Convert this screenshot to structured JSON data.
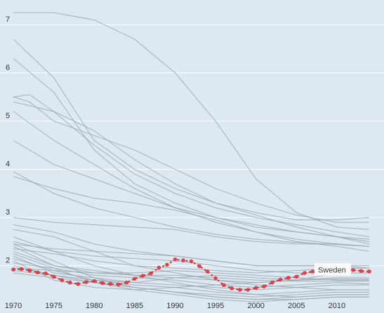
{
  "chart_data": {
    "type": "line",
    "title": "",
    "xlabel": "",
    "ylabel": "",
    "xlim": [
      1970,
      2015
    ],
    "ylim": [
      1.2,
      7.3
    ],
    "x_ticks": [
      1970,
      1975,
      1980,
      1985,
      1990,
      1995,
      2000,
      2005,
      2010
    ],
    "y_ticks": [
      2,
      3,
      4,
      5,
      6,
      7
    ],
    "grid": "horizontal",
    "legend": "none",
    "colors": {
      "background": "#dde8f0",
      "background_line": "#9aa6ae",
      "highlight_line": "#c8323c",
      "highlight_dot": "#d9434c",
      "grid": "#ffffff"
    },
    "highlight": {
      "name": "Sweden",
      "x": [
        1970,
        1971,
        1972,
        1973,
        1974,
        1975,
        1976,
        1977,
        1978,
        1979,
        1980,
        1981,
        1982,
        1983,
        1984,
        1985,
        1986,
        1987,
        1988,
        1989,
        1990,
        1991,
        1992,
        1993,
        1994,
        1995,
        1996,
        1997,
        1998,
        1999,
        2000,
        2001,
        2002,
        2003,
        2004,
        2005,
        2006,
        2007,
        2008,
        2009,
        2010,
        2011,
        2012,
        2013,
        2014
      ],
      "y": [
        1.92,
        1.93,
        1.9,
        1.86,
        1.84,
        1.77,
        1.7,
        1.65,
        1.62,
        1.66,
        1.68,
        1.64,
        1.62,
        1.61,
        1.65,
        1.73,
        1.79,
        1.84,
        1.96,
        2.02,
        2.13,
        2.11,
        2.09,
        1.99,
        1.88,
        1.74,
        1.6,
        1.53,
        1.5,
        1.5,
        1.54,
        1.57,
        1.65,
        1.71,
        1.75,
        1.77,
        1.85,
        1.88,
        1.91,
        1.94,
        1.98,
        1.9,
        1.91,
        1.89,
        1.88
      ]
    },
    "series": [
      {
        "x": [
          1970,
          1975,
          1980,
          1985,
          1990,
          1995,
          2000,
          2005,
          2010,
          2014
        ],
        "y": [
          7.25,
          7.25,
          7.1,
          6.7,
          6.0,
          5.0,
          3.8,
          3.1,
          2.8,
          2.75
        ]
      },
      {
        "x": [
          1970,
          1975,
          1980,
          1985,
          1990,
          1995,
          2000,
          2005,
          2010,
          2014
        ],
        "y": [
          6.7,
          5.9,
          4.6,
          4.0,
          3.6,
          3.3,
          3.05,
          2.8,
          2.6,
          2.45
        ]
      },
      {
        "x": [
          1970,
          1975,
          1980,
          1985,
          1990,
          1995,
          2000,
          2005,
          2010,
          2014
        ],
        "y": [
          6.3,
          5.6,
          4.4,
          3.7,
          3.3,
          3.0,
          2.8,
          2.7,
          2.6,
          2.55
        ]
      },
      {
        "x": [
          1970,
          1972,
          1975,
          1980,
          1985,
          1990,
          1995,
          2000,
          2005,
          2010,
          2014
        ],
        "y": [
          5.5,
          5.4,
          5.0,
          4.7,
          4.4,
          4.0,
          3.6,
          3.3,
          3.05,
          2.9,
          2.9
        ]
      },
      {
        "x": [
          1970,
          1972,
          1975,
          1980,
          1985,
          1990,
          1995,
          2000,
          2005,
          2010,
          2014
        ],
        "y": [
          5.5,
          5.55,
          5.2,
          4.8,
          4.2,
          3.7,
          3.3,
          3.1,
          2.95,
          2.95,
          3.0
        ]
      },
      {
        "x": [
          1970,
          1975,
          1980,
          1985,
          1990,
          1995,
          2000,
          2005,
          2010,
          2014
        ],
        "y": [
          5.4,
          5.2,
          4.5,
          3.9,
          3.5,
          3.2,
          3.0,
          2.85,
          2.7,
          2.6
        ]
      },
      {
        "x": [
          1970,
          1975,
          1980,
          1985,
          1990,
          1995,
          2000,
          2005,
          2010,
          2014
        ],
        "y": [
          5.2,
          4.6,
          4.1,
          3.6,
          3.2,
          2.9,
          2.7,
          2.55,
          2.45,
          2.4
        ]
      },
      {
        "x": [
          1970,
          1975,
          1980,
          1985,
          1990,
          1995,
          2000,
          2005,
          2010,
          2014
        ],
        "y": [
          4.6,
          4.1,
          3.8,
          3.5,
          3.2,
          3.0,
          2.85,
          2.7,
          2.6,
          2.5
        ]
      },
      {
        "x": [
          1970,
          1975,
          1980,
          1985,
          1990,
          1995,
          2000,
          2005,
          2010,
          2014
        ],
        "y": [
          3.95,
          3.5,
          3.2,
          3.0,
          2.8,
          2.65,
          2.55,
          2.48,
          2.44,
          2.4
        ]
      },
      {
        "x": [
          1970,
          1975,
          1980,
          1985,
          1990,
          1995,
          2000,
          2005,
          2010,
          2014
        ],
        "y": [
          3.85,
          3.6,
          3.4,
          3.3,
          3.15,
          2.95,
          2.7,
          2.5,
          2.4,
          2.3
        ]
      },
      {
        "x": [
          1970,
          1975,
          1980,
          1985,
          1990,
          1995,
          2000,
          2005,
          2010,
          2014
        ],
        "y": [
          3.0,
          2.9,
          2.85,
          2.8,
          2.75,
          2.6,
          2.5,
          2.45,
          2.45,
          2.4
        ]
      },
      {
        "x": [
          1970,
          1975,
          1980,
          1985,
          1990,
          1995,
          2000,
          2005,
          2010,
          2014
        ],
        "y": [
          2.85,
          2.7,
          2.45,
          2.3,
          2.2,
          2.1,
          2.0,
          2.0,
          2.0,
          1.95
        ]
      },
      {
        "x": [
          1970,
          1975,
          1980,
          1985,
          1990,
          1995,
          2000,
          2005,
          2010,
          2014
        ],
        "y": [
          2.75,
          2.6,
          2.3,
          2.0,
          1.85,
          1.7,
          1.6,
          1.55,
          1.5,
          1.5
        ]
      },
      {
        "x": [
          1970,
          1975,
          1980,
          1985,
          1990,
          1995,
          2000,
          2005,
          2010,
          2014
        ],
        "y": [
          2.6,
          2.3,
          2.0,
          1.8,
          1.65,
          1.5,
          1.4,
          1.35,
          1.4,
          1.4
        ]
      },
      {
        "x": [
          1970,
          1975,
          1980,
          1985,
          1990,
          1995,
          2000,
          2005,
          2010,
          2014
        ],
        "y": [
          2.45,
          2.1,
          1.75,
          1.55,
          1.45,
          1.35,
          1.3,
          1.35,
          1.4,
          1.4
        ]
      },
      {
        "x": [
          1970,
          1975,
          1980,
          1985,
          1990,
          1995,
          2000,
          2005,
          2010,
          2014
        ],
        "y": [
          2.4,
          2.0,
          1.85,
          1.85,
          1.9,
          1.85,
          1.8,
          1.75,
          1.7,
          1.7
        ]
      },
      {
        "x": [
          1970,
          1975,
          1980,
          1985,
          1990,
          1995,
          2000,
          2005,
          2010,
          2014
        ],
        "y": [
          2.3,
          2.0,
          1.9,
          1.8,
          1.75,
          1.7,
          1.65,
          1.7,
          1.75,
          1.75
        ]
      },
      {
        "x": [
          1970,
          1975,
          1980,
          1985,
          1990,
          1995,
          2000,
          2005,
          2010,
          2014
        ],
        "y": [
          2.2,
          1.85,
          1.75,
          1.65,
          1.6,
          1.55,
          1.5,
          1.55,
          1.6,
          1.6
        ]
      },
      {
        "x": [
          1970,
          1975,
          1980,
          1985,
          1990,
          1995,
          2000,
          2005,
          2010,
          2014
        ],
        "y": [
          2.1,
          1.7,
          1.55,
          1.5,
          1.55,
          1.6,
          1.65,
          1.7,
          1.85,
          1.85
        ]
      },
      {
        "x": [
          1970,
          1975,
          1980,
          1985,
          1990,
          1995,
          2000,
          2005,
          2010,
          2014
        ],
        "y": [
          2.0,
          1.8,
          1.65,
          1.55,
          1.45,
          1.4,
          1.35,
          1.4,
          1.45,
          1.45
        ]
      },
      {
        "x": [
          1970,
          1975,
          1980,
          1985,
          1990,
          1995,
          2000,
          2005,
          2010,
          2014
        ],
        "y": [
          1.9,
          1.8,
          1.7,
          1.6,
          1.55,
          1.45,
          1.4,
          1.45,
          1.5,
          1.5
        ]
      },
      {
        "x": [
          1970,
          1975,
          1980,
          1985,
          1990,
          1995,
          2000,
          2005,
          2010,
          2014
        ],
        "y": [
          2.35,
          2.25,
          2.1,
          2.0,
          1.95,
          1.9,
          1.85,
          1.9,
          1.95,
          1.95
        ]
      },
      {
        "x": [
          1970,
          1975,
          1980,
          1985,
          1990,
          1995,
          2000,
          2005,
          2010,
          2014
        ],
        "y": [
          2.5,
          2.3,
          2.2,
          2.15,
          2.1,
          2.0,
          1.9,
          1.85,
          1.85,
          1.85
        ]
      },
      {
        "x": [
          1970,
          1975,
          1980,
          1985,
          1990,
          1995,
          2000,
          2005,
          2010,
          2014
        ],
        "y": [
          2.05,
          1.95,
          1.8,
          1.75,
          1.7,
          1.6,
          1.55,
          1.6,
          1.65,
          1.62
        ]
      },
      {
        "x": [
          1970,
          1975,
          1980,
          1985,
          1990,
          1995,
          2000,
          2005,
          2010,
          2014
        ],
        "y": [
          1.85,
          1.75,
          1.65,
          1.55,
          1.45,
          1.35,
          1.3,
          1.3,
          1.35,
          1.35
        ]
      },
      {
        "x": [
          1970,
          1975,
          1980,
          1985,
          1990,
          1995,
          2000,
          2005,
          2010,
          2014
        ],
        "y": [
          2.25,
          1.95,
          1.65,
          1.5,
          1.4,
          1.3,
          1.25,
          1.3,
          1.35,
          1.35
        ]
      },
      {
        "x": [
          1970,
          1975,
          1980,
          1985,
          1990,
          1995,
          2000,
          2005,
          2010,
          2014
        ],
        "y": [
          2.15,
          1.9,
          1.7,
          1.65,
          1.75,
          1.8,
          1.75,
          1.7,
          1.72,
          1.72
        ]
      },
      {
        "x": [
          1970,
          1975,
          1980,
          1985,
          1990,
          1995,
          2000,
          2005,
          2010,
          2014
        ],
        "y": [
          1.95,
          1.9,
          1.85,
          1.8,
          1.8,
          1.75,
          1.7,
          1.68,
          1.68,
          1.68
        ]
      },
      {
        "x": [
          1970,
          1975,
          1980,
          1985,
          1990,
          1995,
          2000,
          2005,
          2010,
          2014
        ],
        "y": [
          2.45,
          2.35,
          2.3,
          2.25,
          2.2,
          2.1,
          2.0,
          2.0,
          2.0,
          2.0
        ]
      }
    ],
    "annotations": [
      {
        "text": "Sweden",
        "x": 2012,
        "y": 1.9
      }
    ]
  }
}
